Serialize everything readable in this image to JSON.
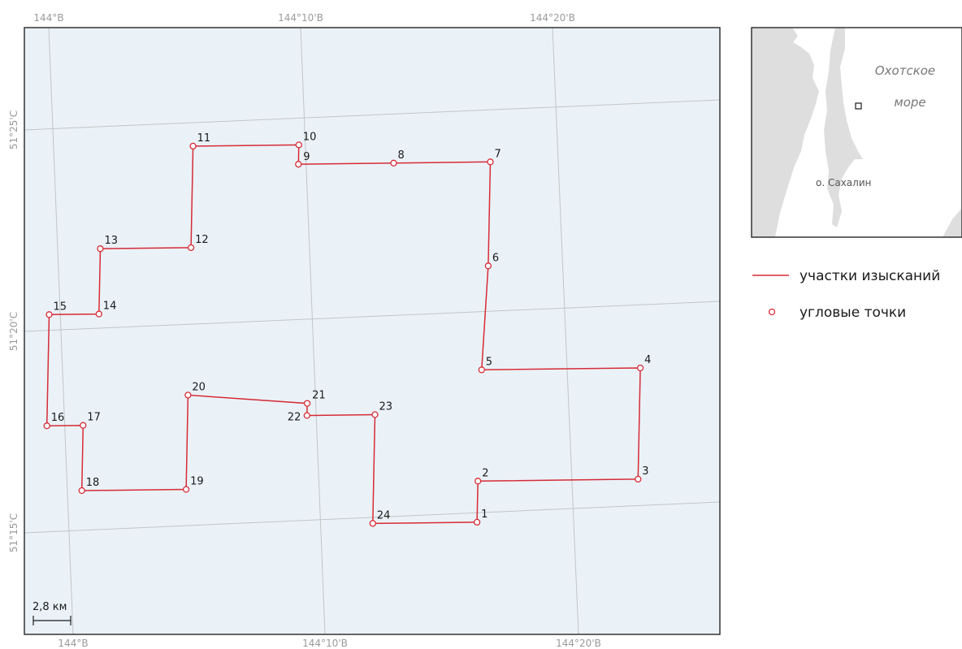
{
  "map": {
    "top_lon_labels": [
      "144°В",
      "144°10'В",
      "144°20'В"
    ],
    "bottom_lon_labels": [
      "144°В",
      "144°10'В",
      "144°20'В"
    ],
    "lat_labels": [
      "51°25'С",
      "51°20'С",
      "51°15'С"
    ],
    "scale_bar": "2,8 км",
    "survey_polygon": [
      {
        "id": "1",
        "lon": 144.278,
        "lat": 51.251
      },
      {
        "id": "2",
        "lon": 144.278,
        "lat": 51.268
      },
      {
        "id": "3",
        "lon": 144.384,
        "lat": 51.268
      },
      {
        "id": "4",
        "lon": 144.384,
        "lat": 51.314
      },
      {
        "id": "5",
        "lon": 144.279,
        "lat": 51.314
      },
      {
        "id": "6",
        "lon": 144.282,
        "lat": 51.357
      },
      {
        "id": "7",
        "lon": 144.282,
        "lat": 51.4
      },
      {
        "id": "8",
        "lon": 144.218,
        "lat": 51.4
      },
      {
        "id": "9",
        "lon": 144.155,
        "lat": 51.4
      },
      {
        "id": "10",
        "lon": 144.155,
        "lat": 51.408
      },
      {
        "id": "11",
        "lon": 144.085,
        "lat": 51.408
      },
      {
        "id": "12",
        "lon": 144.085,
        "lat": 51.366
      },
      {
        "id": "13",
        "lon": 144.025,
        "lat": 51.366
      },
      {
        "id": "14",
        "lon": 144.025,
        "lat": 51.339
      },
      {
        "id": "15",
        "lon": 143.992,
        "lat": 51.339
      },
      {
        "id": "16",
        "lon": 143.992,
        "lat": 51.293
      },
      {
        "id": "17",
        "lon": 144.016,
        "lat": 51.293
      },
      {
        "id": "18",
        "lon": 144.016,
        "lat": 51.266
      },
      {
        "id": "19",
        "lon": 144.085,
        "lat": 51.266
      },
      {
        "id": "20",
        "lon": 144.085,
        "lat": 51.305
      },
      {
        "id": "21",
        "lon": 144.164,
        "lat": 51.301
      },
      {
        "id": "22",
        "lon": 144.164,
        "lat": 51.296
      },
      {
        "id": "23",
        "lon": 144.209,
        "lat": 51.296
      },
      {
        "id": "24",
        "lon": 144.209,
        "lat": 51.251
      }
    ]
  },
  "inset": {
    "sea_label_line1": "Охотское",
    "sea_label_line2": "море",
    "island_label": "о. Сахалин"
  },
  "legend": {
    "line_label": "участки изысканий",
    "point_label": "угловые точки"
  },
  "colors": {
    "route": "#d62b35",
    "map_background": "#eaf2f8",
    "frame": "#333333",
    "graticule": "#c4c4c4",
    "land": "#dedede"
  }
}
